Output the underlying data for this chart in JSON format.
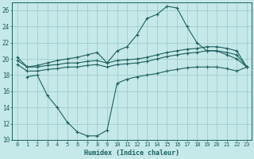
{
  "xlabel": "Humidex (Indice chaleur)",
  "bg_color": "#c5e8e8",
  "grid_color": "#9fcece",
  "line_color": "#1e6060",
  "xlim": [
    -0.5,
    23.5
  ],
  "ylim": [
    10,
    27
  ],
  "xticks": [
    0,
    1,
    2,
    3,
    4,
    5,
    6,
    7,
    8,
    9,
    10,
    11,
    12,
    13,
    14,
    15,
    16,
    17,
    18,
    19,
    20,
    21,
    22,
    23
  ],
  "yticks": [
    10,
    12,
    14,
    16,
    18,
    20,
    22,
    24,
    26
  ],
  "line1_x": [
    0,
    1,
    2,
    3,
    4,
    5,
    6,
    7,
    8,
    9,
    10,
    11,
    12,
    13,
    14,
    15,
    16,
    17,
    18,
    19,
    20,
    21,
    22,
    23
  ],
  "line1_y": [
    20.2,
    19.0,
    19.2,
    19.5,
    19.8,
    20.0,
    20.2,
    20.5,
    20.8,
    19.5,
    21.0,
    21.5,
    23.0,
    25.0,
    25.5,
    26.5,
    26.3,
    24.0,
    22.0,
    21.0,
    21.0,
    20.5,
    20.0,
    19.0
  ],
  "line2_x": [
    0,
    1,
    2,
    3,
    4,
    5,
    6,
    7,
    8,
    9,
    10,
    11,
    12,
    13,
    14,
    15,
    16,
    17,
    18,
    19,
    20,
    21,
    22,
    23
  ],
  "line2_y": [
    19.8,
    19.0,
    19.0,
    19.2,
    19.3,
    19.5,
    19.5,
    19.7,
    19.8,
    19.5,
    19.8,
    19.9,
    20.0,
    20.2,
    20.5,
    20.8,
    21.0,
    21.2,
    21.3,
    21.5,
    21.5,
    21.3,
    21.0,
    19.0
  ],
  "line3_x": [
    0,
    1,
    2,
    3,
    4,
    5,
    6,
    7,
    8,
    9,
    10,
    11,
    12,
    13,
    14,
    15,
    16,
    17,
    18,
    19,
    20,
    21,
    22,
    23
  ],
  "line3_y": [
    19.3,
    18.5,
    18.5,
    18.7,
    18.8,
    19.0,
    19.0,
    19.2,
    19.3,
    19.0,
    19.3,
    19.4,
    19.5,
    19.7,
    20.0,
    20.3,
    20.5,
    20.7,
    20.8,
    21.0,
    21.0,
    20.8,
    20.5,
    19.0
  ],
  "line4_x": [
    1,
    2,
    3,
    4,
    5,
    6,
    7,
    8,
    9,
    10,
    11,
    12,
    13,
    14,
    15,
    16,
    17,
    18,
    19,
    20,
    21,
    22,
    23
  ],
  "line4_y": [
    17.8,
    18.0,
    15.5,
    14.0,
    12.2,
    11.0,
    10.5,
    10.5,
    11.2,
    17.0,
    17.5,
    17.8,
    18.0,
    18.2,
    18.5,
    18.7,
    18.9,
    19.0,
    19.0,
    19.0,
    18.8,
    18.5,
    19.0
  ]
}
